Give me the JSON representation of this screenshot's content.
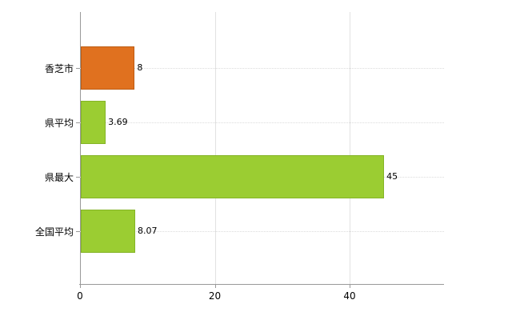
{
  "chart_data": {
    "type": "bar",
    "orientation": "horizontal",
    "title": "",
    "xlabel": "",
    "ylabel": "",
    "categories": [
      "香芝市",
      "県平均",
      "県最大",
      "全国平均"
    ],
    "values": [
      8,
      3.69,
      45,
      8.07
    ],
    "value_labels": [
      "8",
      "3.69",
      "45",
      "8.07"
    ],
    "series": [
      {
        "name": "value",
        "values": [
          8,
          3.69,
          45,
          8.07
        ]
      }
    ],
    "bar_colors": [
      "#e0711f",
      "#9bcd32",
      "#9bcd32",
      "#9bcd32"
    ],
    "bar_border_colors": [
      "#bd5c13",
      "#84b426",
      "#84b426",
      "#84b426"
    ],
    "x_ticks": [
      0,
      20,
      40
    ],
    "x_tick_labels": [
      "0",
      "20",
      "40"
    ],
    "xlim": [
      0,
      54
    ],
    "grid": true,
    "legend": false,
    "background_color": "#ffffff",
    "axis_color": "#9a9a9a",
    "gridline_color": "#e2e2e2"
  }
}
